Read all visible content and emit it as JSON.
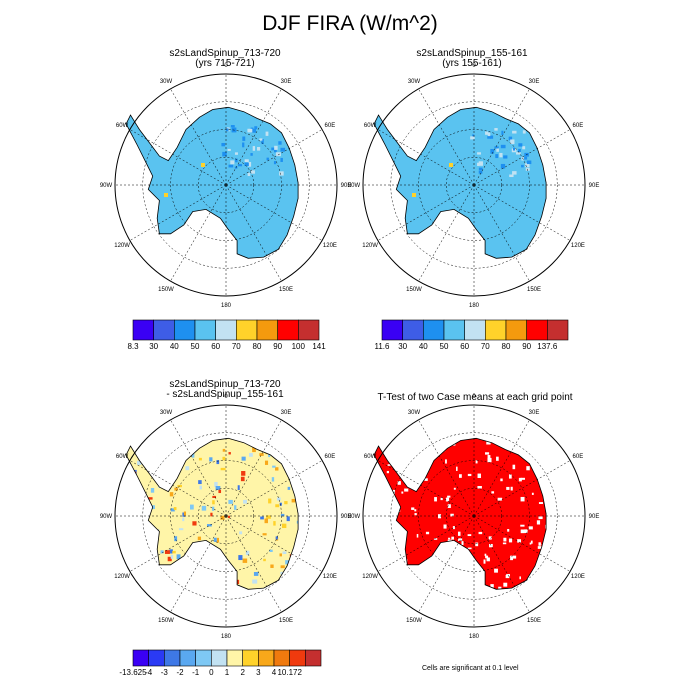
{
  "title": "DJF FIRA (W/m^2)",
  "panels": {
    "p1": {
      "line1": "s2sLandSpinup_713-720",
      "line2": "(yrs 715-721)"
    },
    "p2": {
      "line1": "s2sLandSpinup_155-161",
      "line2": "(yrs 155-161)"
    },
    "p3": {
      "line1": "s2sLandSpinup_713-720",
      "line2": "- s2sLandSpinup_155-161"
    },
    "p4": {
      "line1": "T-Test of two Case means at each grid point"
    }
  },
  "lon_labels": [
    "0",
    "30E",
    "60E",
    "90E",
    "120E",
    "150E",
    "180",
    "150W",
    "120W",
    "90W",
    "60W",
    "30W"
  ],
  "colorbars": {
    "cb1": {
      "labels": [
        "8.3",
        "30",
        "40",
        "50",
        "60",
        "70",
        "80",
        "90",
        "100",
        "141"
      ],
      "colors": [
        "#3a00f4",
        "#3e5de6",
        "#1e90f0",
        "#5ac3f0",
        "#c2e2f2",
        "#ffd22a",
        "#f49a0e",
        "#ff0000",
        "#c42f2f"
      ]
    },
    "cb2": {
      "labels": [
        "11.6",
        "30",
        "40",
        "50",
        "60",
        "70",
        "80",
        "90",
        "137.6"
      ],
      "colors": [
        "#3a00f4",
        "#3e5de6",
        "#1e90f0",
        "#5ac3f0",
        "#c2e2f2",
        "#ffd22a",
        "#f49a0e",
        "#ff0000",
        "#c42f2f"
      ]
    },
    "cb3": {
      "labels": [
        "-13.625",
        "-4",
        "-3",
        "-2",
        "-1",
        "0",
        "1",
        "2",
        "3",
        "4",
        "10.172"
      ],
      "colors": [
        "#3a00f4",
        "#2a3af4",
        "#3e78e6",
        "#5aa8f0",
        "#7ec8f4",
        "#c2e2f2",
        "#fff5a8",
        "#ffd22a",
        "#f8a81a",
        "#f07a0e",
        "#f03a0e",
        "#c42f2f"
      ]
    }
  },
  "note": "Cells are significant at 0.1 level",
  "map_colors": {
    "ocean": "#ffffff",
    "land_abs": "#5ac3f0",
    "land_diff": "#fff5a8",
    "sig": "#ff0000"
  }
}
